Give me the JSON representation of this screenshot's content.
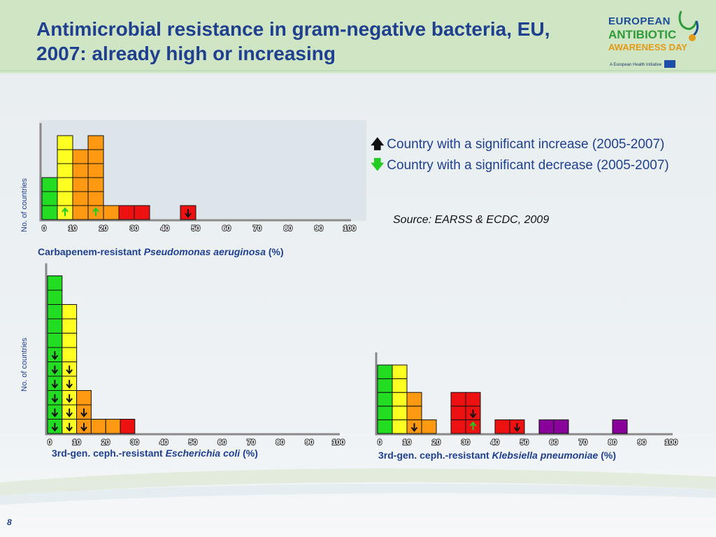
{
  "slide": {
    "title_line1": "Antimicrobial resistance in gram-negative bacteria, EU,",
    "title_line2": "2007: already high or increasing",
    "page_number": "8",
    "source": "Source: EARSS & ECDC, 2009"
  },
  "logo": {
    "line1": "EUROPEAN",
    "line2": "ANTIBIOTIC",
    "line3": "AWARENESS DAY",
    "tagline": "A European Health Initiative"
  },
  "legend": {
    "increase_glyph": "🡅",
    "increase_text": "Country with a significant increase (2005-2007)",
    "decrease_glyph": "🡇",
    "decrease_text": "Country with a significant decrease (2005-2007)"
  },
  "colors": {
    "bin_0_5": "#22dd22",
    "bin_5_10": "#ffff22",
    "bin_10_25": "#ff9911",
    "bin_25_50": "#ee1111",
    "bin_50_plus": "#880099",
    "increase_arrow": "#111111",
    "decrease_arrow": "#22cc22"
  },
  "chart_data": [
    {
      "type": "bar",
      "ylabel": "No. of countries",
      "caption_prefix": "Carbapenem-resistant ",
      "caption_organism": "Pseudomonas aeruginosa",
      "caption_suffix": " (%)",
      "xlim": [
        0,
        100
      ],
      "x_ticks": [
        "0",
        "10",
        "20",
        "30",
        "40",
        "50",
        "60",
        "70",
        "80",
        "90",
        "100"
      ],
      "bin_edges": [
        0,
        5,
        10,
        15,
        20,
        25,
        30,
        35,
        40,
        45,
        50,
        55,
        60,
        65,
        70,
        75,
        80,
        85,
        90,
        95,
        100
      ],
      "counts": [
        3,
        6,
        5,
        6,
        1,
        1,
        1,
        0,
        0,
        1,
        0,
        0,
        0,
        0,
        0,
        0,
        0,
        0,
        0,
        0
      ],
      "increase": [
        0,
        0,
        0,
        0,
        0,
        0,
        0,
        0,
        0,
        1,
        0,
        0,
        0,
        0,
        0,
        0,
        0,
        0,
        0,
        0
      ],
      "decrease": [
        0,
        1,
        0,
        1,
        0,
        0,
        0,
        0,
        0,
        0,
        0,
        0,
        0,
        0,
        0,
        0,
        0,
        0,
        0,
        0
      ]
    },
    {
      "type": "bar",
      "ylabel": "No. of countries",
      "caption_prefix": "3rd-gen. ceph.-resistant ",
      "caption_organism": "Escherichia coli",
      "caption_suffix": " (%)",
      "xlim": [
        0,
        100
      ],
      "x_ticks": [
        "0",
        "10",
        "20",
        "30",
        "40",
        "50",
        "60",
        "70",
        "80",
        "90",
        "100"
      ],
      "bin_edges": [
        0,
        5,
        10,
        15,
        20,
        25,
        30,
        35,
        40,
        45,
        50,
        55,
        60,
        65,
        70,
        75,
        80,
        85,
        90,
        95,
        100
      ],
      "counts": [
        11,
        9,
        3,
        1,
        1,
        1,
        0,
        0,
        0,
        0,
        0,
        0,
        0,
        0,
        0,
        0,
        0,
        0,
        0,
        0
      ],
      "increase": [
        6,
        5,
        2,
        0,
        0,
        0,
        0,
        0,
        0,
        0,
        0,
        0,
        0,
        0,
        0,
        0,
        0,
        0,
        0,
        0
      ],
      "decrease": [
        0,
        0,
        0,
        0,
        0,
        0,
        0,
        0,
        0,
        0,
        0,
        0,
        0,
        0,
        0,
        0,
        0,
        0,
        0,
        0
      ]
    },
    {
      "type": "bar",
      "ylabel": "",
      "caption_prefix": "3rd-gen. ceph.-resistant ",
      "caption_organism": "Klebsiella pneumoniae",
      "caption_suffix": " (%)",
      "xlim": [
        0,
        100
      ],
      "x_ticks": [
        "0",
        "10",
        "20",
        "30",
        "40",
        "50",
        "60",
        "70",
        "80",
        "90",
        "100"
      ],
      "bin_edges": [
        0,
        5,
        10,
        15,
        20,
        25,
        30,
        35,
        40,
        45,
        50,
        55,
        60,
        65,
        70,
        75,
        80,
        85,
        90,
        95,
        100
      ],
      "counts": [
        5,
        5,
        3,
        1,
        0,
        3,
        3,
        0,
        1,
        1,
        0,
        1,
        1,
        0,
        0,
        0,
        1,
        0,
        0,
        0
      ],
      "increase": [
        0,
        0,
        1,
        0,
        0,
        0,
        1,
        0,
        0,
        1,
        0,
        0,
        0,
        0,
        0,
        0,
        0,
        0,
        0,
        0
      ],
      "decrease": [
        0,
        0,
        0,
        0,
        0,
        0,
        1,
        0,
        0,
        0,
        0,
        0,
        0,
        0,
        0,
        0,
        0,
        0,
        0,
        0
      ]
    }
  ]
}
